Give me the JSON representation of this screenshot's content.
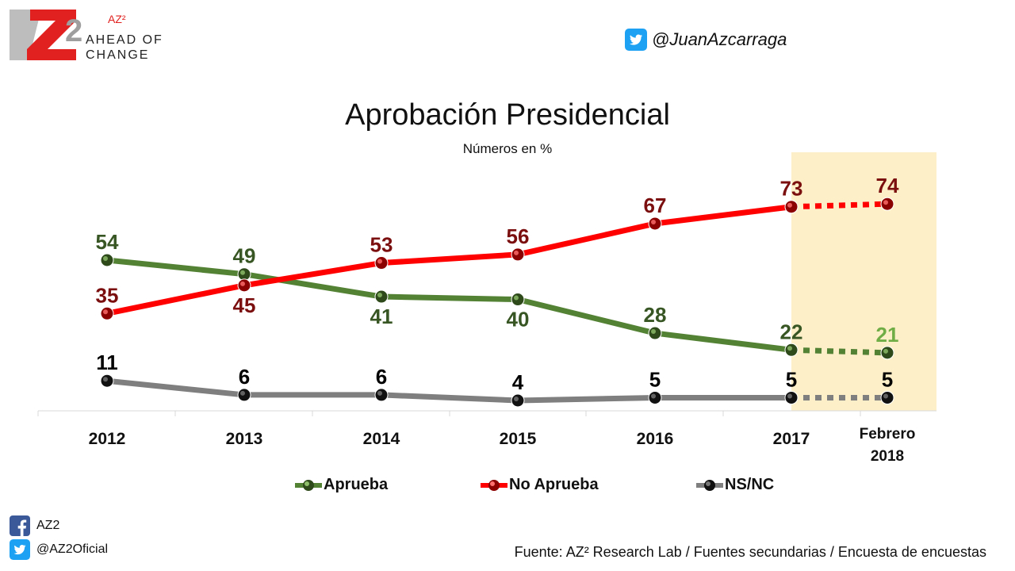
{
  "brand": {
    "name_sup": "AZ²",
    "tagline_line1": "AHEAD OF",
    "tagline_line2": "CHANGE"
  },
  "twitter_top": "@JuanAzcarraga",
  "chart_data": {
    "type": "line",
    "title": "Aprobación Presidencial",
    "subtitle": "Números en %",
    "categories": [
      "2012",
      "2013",
      "2014",
      "2015",
      "2016",
      "2017",
      "Febrero 2018"
    ],
    "ylim": [
      0,
      80
    ],
    "grid": false,
    "legend_position": "bottom",
    "highlighted_category": "Febrero 2018",
    "series": [
      {
        "name": "Aprueba",
        "values": [
          54,
          49,
          41,
          40,
          28,
          22,
          21
        ],
        "color": "#548235",
        "label_color": "#375623"
      },
      {
        "name": "No Aprueba",
        "values": [
          35,
          45,
          53,
          56,
          67,
          73,
          74
        ],
        "color": "#ff0000",
        "label_color": "#7b0f0f"
      },
      {
        "name": "NS/NC",
        "values": [
          11,
          6,
          6,
          4,
          5,
          5,
          5
        ],
        "color": "#7f7f7f",
        "label_color": "#000000"
      }
    ],
    "colors": {
      "highlight_band": "#fdf0c8",
      "last_aprueba_label": "#70ad47"
    }
  },
  "footer": {
    "facebook": "AZ2",
    "twitter": "@AZ2Oficial",
    "source": "Fuente: AZ² Research Lab / Fuentes secundarias / Encuesta de encuestas"
  },
  "icons": [
    "twitter-icon",
    "facebook-icon"
  ]
}
